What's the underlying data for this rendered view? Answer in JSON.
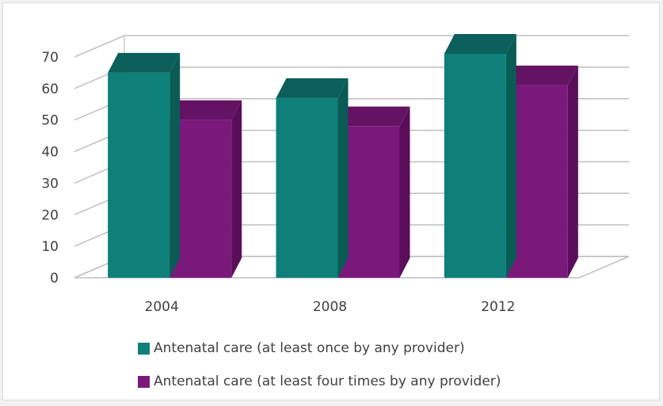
{
  "chart_data": {
    "type": "bar",
    "style": "3d-clustered-column",
    "categories": [
      "2004",
      "2008",
      "2012"
    ],
    "series": [
      {
        "name": "Antenatal care (at least once by any provider)",
        "values": [
          65,
          57,
          71
        ],
        "color": "#0e7f79",
        "side_color": "#0a5a56",
        "top_color": "#0c5f5a"
      },
      {
        "name": "Antenatal care (at least four times by any provider)",
        "values": [
          50,
          48,
          61
        ],
        "color": "#7b197b",
        "side_color": "#5a0e5a",
        "top_color": "#641264"
      }
    ],
    "y_ticks": [
      "0",
      "10",
      "20",
      "30",
      "40",
      "50",
      "60",
      "70"
    ],
    "ylim": [
      0,
      70
    ],
    "title": "",
    "xlabel": "",
    "ylabel": "",
    "grid": true,
    "legend_position": "bottom"
  }
}
